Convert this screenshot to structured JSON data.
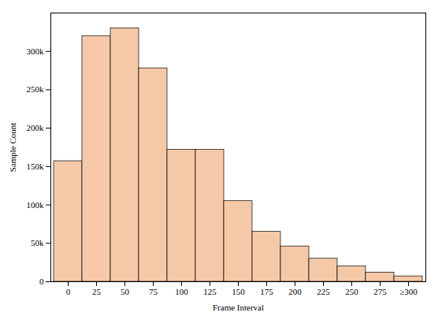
{
  "chart_data": {
    "type": "bar",
    "categories": [
      "0",
      "25",
      "50",
      "75",
      "100",
      "125",
      "150",
      "175",
      "200",
      "225",
      "250",
      "275",
      "≥300"
    ],
    "values": [
      157000,
      320000,
      330000,
      278000,
      172000,
      172000,
      105000,
      65000,
      46000,
      30000,
      20000,
      12000,
      7000
    ],
    "color": "#F5C9A8",
    "xlabel": "Frame Interval",
    "ylabel": "Sample Count",
    "ylim": [
      0,
      350000
    ],
    "yticks": [
      0,
      {
        "value": 50000,
        "label": "50k"
      },
      {
        "value": 100000,
        "label": "100k"
      },
      {
        "value": 150000,
        "label": "150k"
      },
      {
        "value": 200000,
        "label": "200k"
      },
      {
        "value": 250000,
        "label": "250k"
      },
      {
        "value": 300000,
        "label": "300k"
      }
    ]
  }
}
